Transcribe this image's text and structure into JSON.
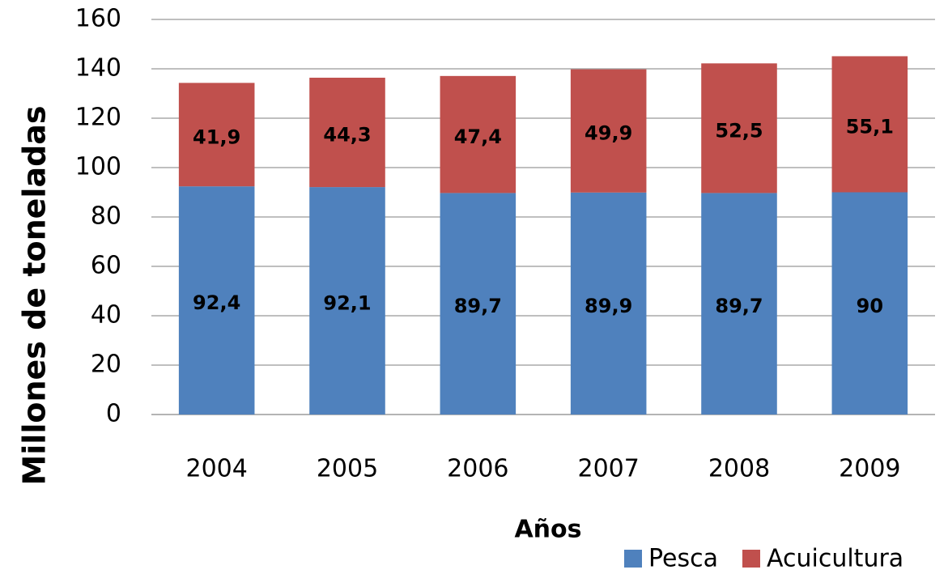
{
  "chart_data": {
    "type": "stacked_bar",
    "x_label": "Años",
    "y_label": "Millones de toneladas",
    "categories": [
      "2004",
      "2005",
      "2006",
      "2007",
      "2008",
      "2009"
    ],
    "series": [
      {
        "name": "Pesca",
        "color": "#4f81bd",
        "values": [
          92.4,
          92.1,
          89.7,
          89.9,
          89.7,
          90
        ],
        "value_labels": [
          "92,4",
          "92,1",
          "89,7",
          "89,9",
          "89,7",
          "90"
        ]
      },
      {
        "name": "Acuicultura",
        "color": "#c0504d",
        "values": [
          41.9,
          44.3,
          47.4,
          49.9,
          52.5,
          55.1
        ],
        "value_labels": [
          "41,9",
          "44,3",
          "47,4",
          "49,9",
          "52,5",
          "55,1"
        ]
      }
    ],
    "ylim": [
      0,
      160
    ],
    "yticks": [
      0,
      20,
      40,
      60,
      80,
      100,
      120,
      140,
      160
    ],
    "grid": true,
    "legend": "bottom-right"
  }
}
